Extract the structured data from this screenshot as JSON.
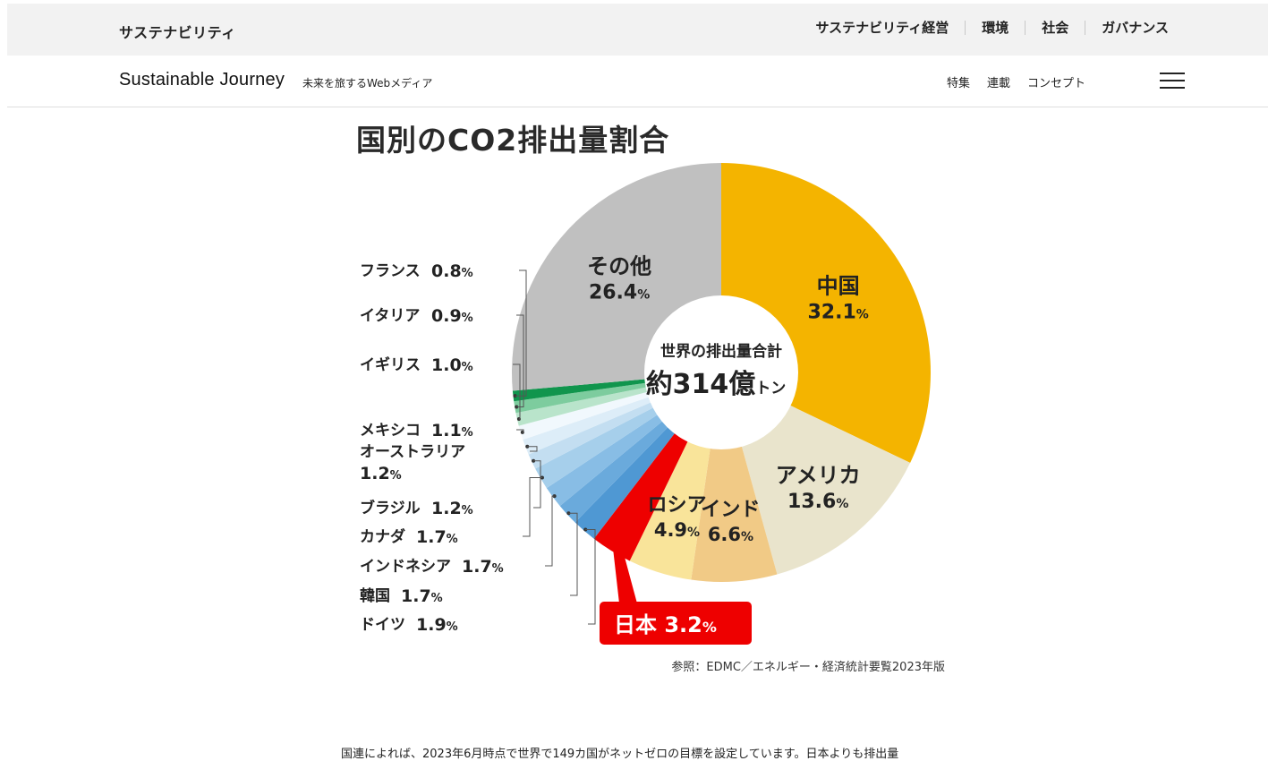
{
  "header": {
    "brand": "サステナビリティ",
    "nav": [
      "サステナビリティ経営",
      "環境",
      "社会",
      "ガバナンス"
    ]
  },
  "subheader": {
    "logo": "Sustainable Journey",
    "tagline": "未来を旅するWebメディア",
    "nav": [
      "特集",
      "連載",
      "コンセプト"
    ],
    "menu_icon": "hamburger-icon"
  },
  "chart_data": {
    "type": "pie",
    "title": "国別のCO2排出量割合",
    "center_label": [
      "世界の排出量合計",
      "約314億",
      "トン"
    ],
    "unit": "%",
    "slices": [
      {
        "label": "中国",
        "value": 32.1,
        "color": "#f4b400"
      },
      {
        "label": "アメリカ",
        "value": 13.6,
        "color": "#e9e4cc"
      },
      {
        "label": "インド",
        "value": 6.6,
        "color": "#f1ca86"
      },
      {
        "label": "ロシア",
        "value": 4.9,
        "color": "#f9e49a"
      },
      {
        "label": "日本",
        "value": 3.2,
        "color": "#ee0000"
      },
      {
        "label": "ドイツ",
        "value": 1.9,
        "color": "#4f98d3"
      },
      {
        "label": "韓国",
        "value": 1.7,
        "color": "#6aaadc"
      },
      {
        "label": "インドネシア",
        "value": 1.7,
        "color": "#88bde5"
      },
      {
        "label": "カナダ",
        "value": 1.7,
        "color": "#a6cfeb"
      },
      {
        "label": "ブラジル",
        "value": 1.2,
        "color": "#c3def1"
      },
      {
        "label": "オーストラリア",
        "value": 1.2,
        "color": "#ddedf8"
      },
      {
        "label": "メキシコ",
        "value": 1.1,
        "color": "#f1f8fd"
      },
      {
        "label": "イギリス",
        "value": 1.0,
        "color": "#b9e4cb"
      },
      {
        "label": "イタリア",
        "value": 0.9,
        "color": "#7dcc9e"
      },
      {
        "label": "フランス",
        "value": 0.8,
        "color": "#10954d"
      },
      {
        "label": "その他",
        "value": 26.4,
        "color": "#c0c0c0"
      }
    ],
    "highlight": "日本"
  },
  "source": "参照：EDMC／エネルギー・経済統計要覧2023年版",
  "body_text": "国連によれば、2023年6月時点で世界で149カ国がネットゼロの目標を設定しています。日本よりも排出量"
}
